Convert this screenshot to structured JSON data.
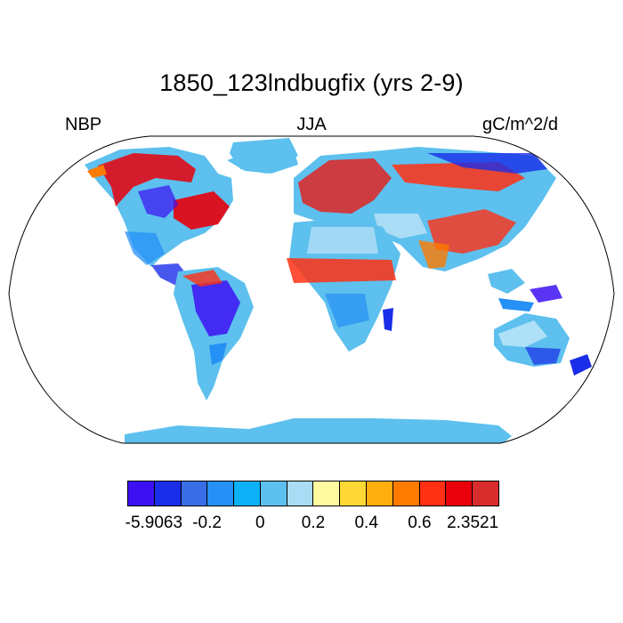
{
  "title": "1850_123lndbugfix (yrs 2-9)",
  "left_label": "NBP",
  "center_label": "JJA",
  "right_label": "gC/m^2/d",
  "colorbar": {
    "colors": [
      "#3d10f2",
      "#1a2de8",
      "#3a6ee8",
      "#2590f5",
      "#0db1f8",
      "#5dc0ee",
      "#a9dcf5",
      "#fffaa0",
      "#ffd835",
      "#ffae0e",
      "#ff7b00",
      "#ff3013",
      "#e8000b",
      "#d82d2d"
    ],
    "labels": [
      "-5.9063",
      "-0.2",
      "0",
      "0.2",
      "0.4",
      "0.6",
      "2.3521"
    ]
  },
  "map": {
    "projection": "robinson",
    "ocean_color": "#ffffff",
    "land_base_color": "#5dc0ee"
  }
}
